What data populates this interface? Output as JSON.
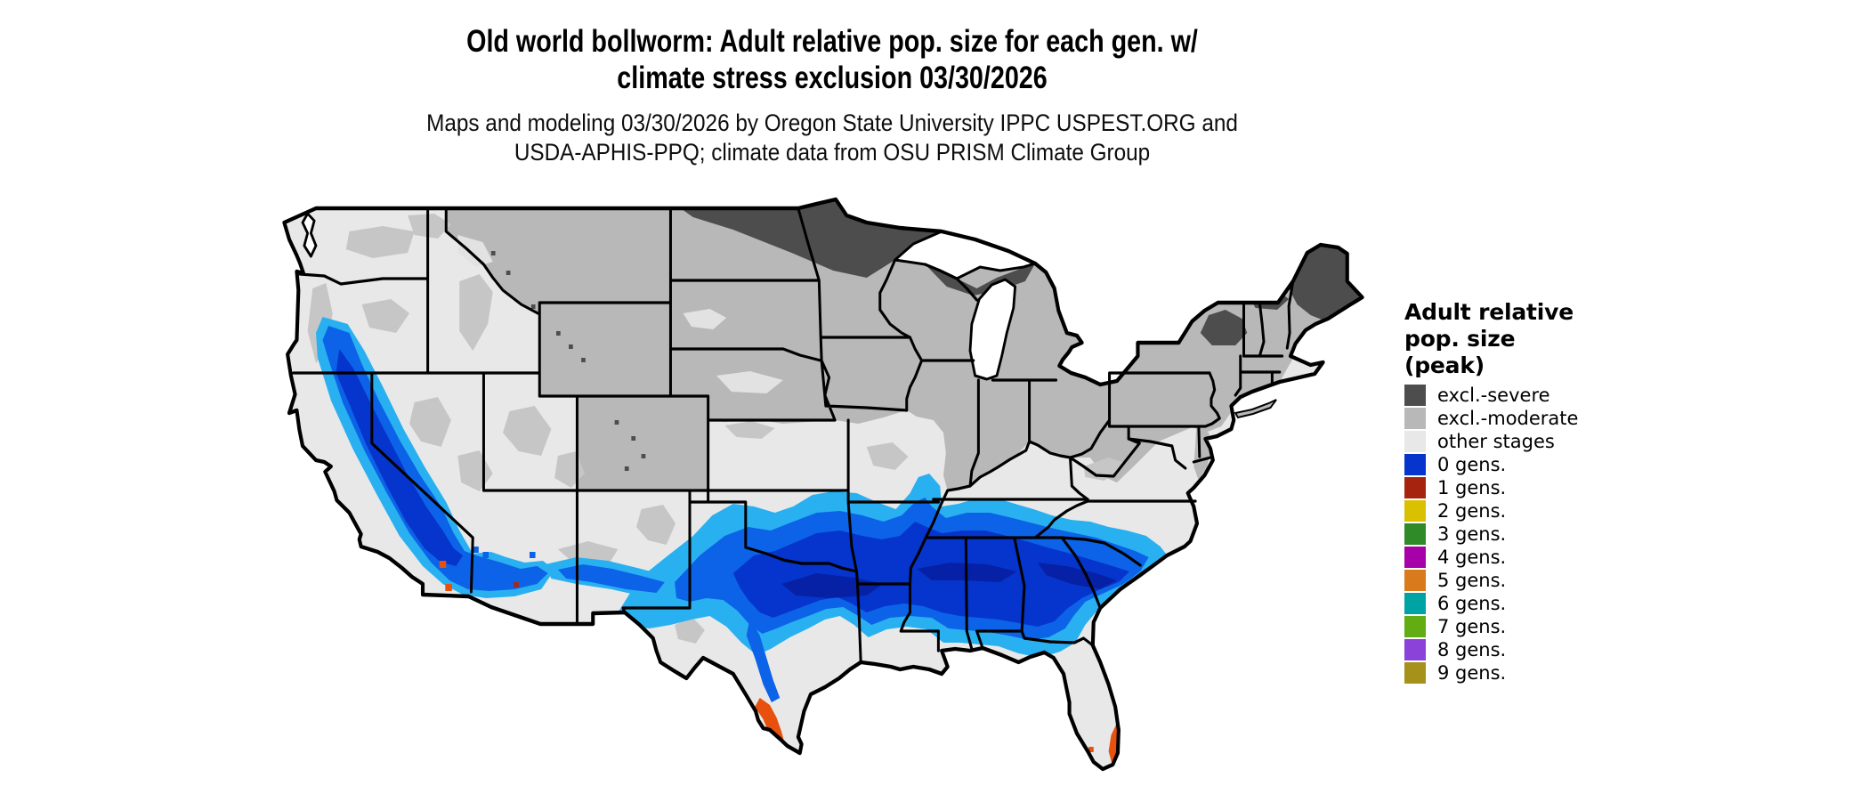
{
  "title": {
    "line1": "Old world bollworm: Adult relative pop. size for each gen. w/",
    "line2": "climate stress exclusion 03/30/2026"
  },
  "subtitle": {
    "line1": "Maps and modeling 03/30/2026 by Oregon State University IPPC USPEST.ORG and",
    "line2": "USDA-APHIS-PPQ; climate data from OSU PRISM Climate Group"
  },
  "legend": {
    "title_lines": [
      "Adult relative",
      "pop. size",
      "(peak)"
    ],
    "items": [
      {
        "label": "excl.-severe",
        "color": "#4d4d4d"
      },
      {
        "label": "excl.-moderate",
        "color": "#b8b8b8"
      },
      {
        "label": "other stages",
        "color": "#e8e8e8"
      },
      {
        "label": "0 gens.",
        "color": "#0535cc"
      },
      {
        "label": "1 gens.",
        "color": "#a62310"
      },
      {
        "label": "2 gens.",
        "color": "#d9c100"
      },
      {
        "label": "3 gens.",
        "color": "#2f8a28"
      },
      {
        "label": "4 gens.",
        "color": "#a800a8"
      },
      {
        "label": "5 gens.",
        "color": "#d97b1c"
      },
      {
        "label": "6 gens.",
        "color": "#00a3a3"
      },
      {
        "label": "7 gens.",
        "color": "#61ad13"
      },
      {
        "label": "8 gens.",
        "color": "#8b42d8"
      },
      {
        "label": "9 gens.",
        "color": "#a6921a"
      }
    ]
  },
  "map": {
    "region": "Contiguous United States",
    "colors": {
      "background": "#ffffff",
      "state_border": "#000000",
      "water": "#ffffff",
      "other_stages": "#e8e8e8",
      "excl_moderate": "#b8b8b8",
      "excl_severe": "#4d4d4d",
      "speckle_moderate": "#c6c6c6",
      "patch_light": "#e2e2e2",
      "blue_light": "#29b0f0",
      "blue_mid": "#0c63e8",
      "blue_deep": "#0535cc",
      "blue_dark": "#0721a6",
      "orange_hot": "#e8500e",
      "red_spot": "#a82912"
    }
  }
}
